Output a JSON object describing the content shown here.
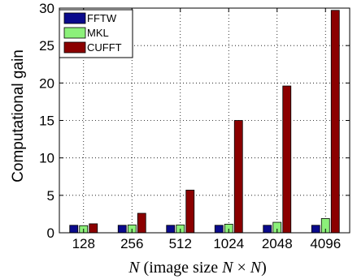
{
  "chart_data": {
    "type": "bar",
    "categories": [
      "128",
      "256",
      "512",
      "1024",
      "2048",
      "4096"
    ],
    "series": [
      {
        "name": "FFTW",
        "color": "#0a0a8c",
        "values": [
          1.0,
          1.0,
          1.0,
          1.0,
          1.0,
          1.0
        ]
      },
      {
        "name": "MKL",
        "color": "#8cf07a",
        "values": [
          0.95,
          1.05,
          1.05,
          1.15,
          1.4,
          1.9
        ]
      },
      {
        "name": "CUFFT",
        "color": "#8b0000",
        "values": [
          1.2,
          2.6,
          5.7,
          15.0,
          19.6,
          29.7
        ]
      }
    ],
    "ylabel": "Computational gain",
    "xlabel": {
      "n": "N",
      "mid": " (image size ",
      "n2": "N",
      "times": " × ",
      "n3": "N",
      "close": ")"
    },
    "ylim": [
      0,
      30
    ],
    "yticks": [
      0,
      5,
      10,
      15,
      20,
      25,
      30
    ],
    "grid": true,
    "legend_position": "top-left"
  }
}
